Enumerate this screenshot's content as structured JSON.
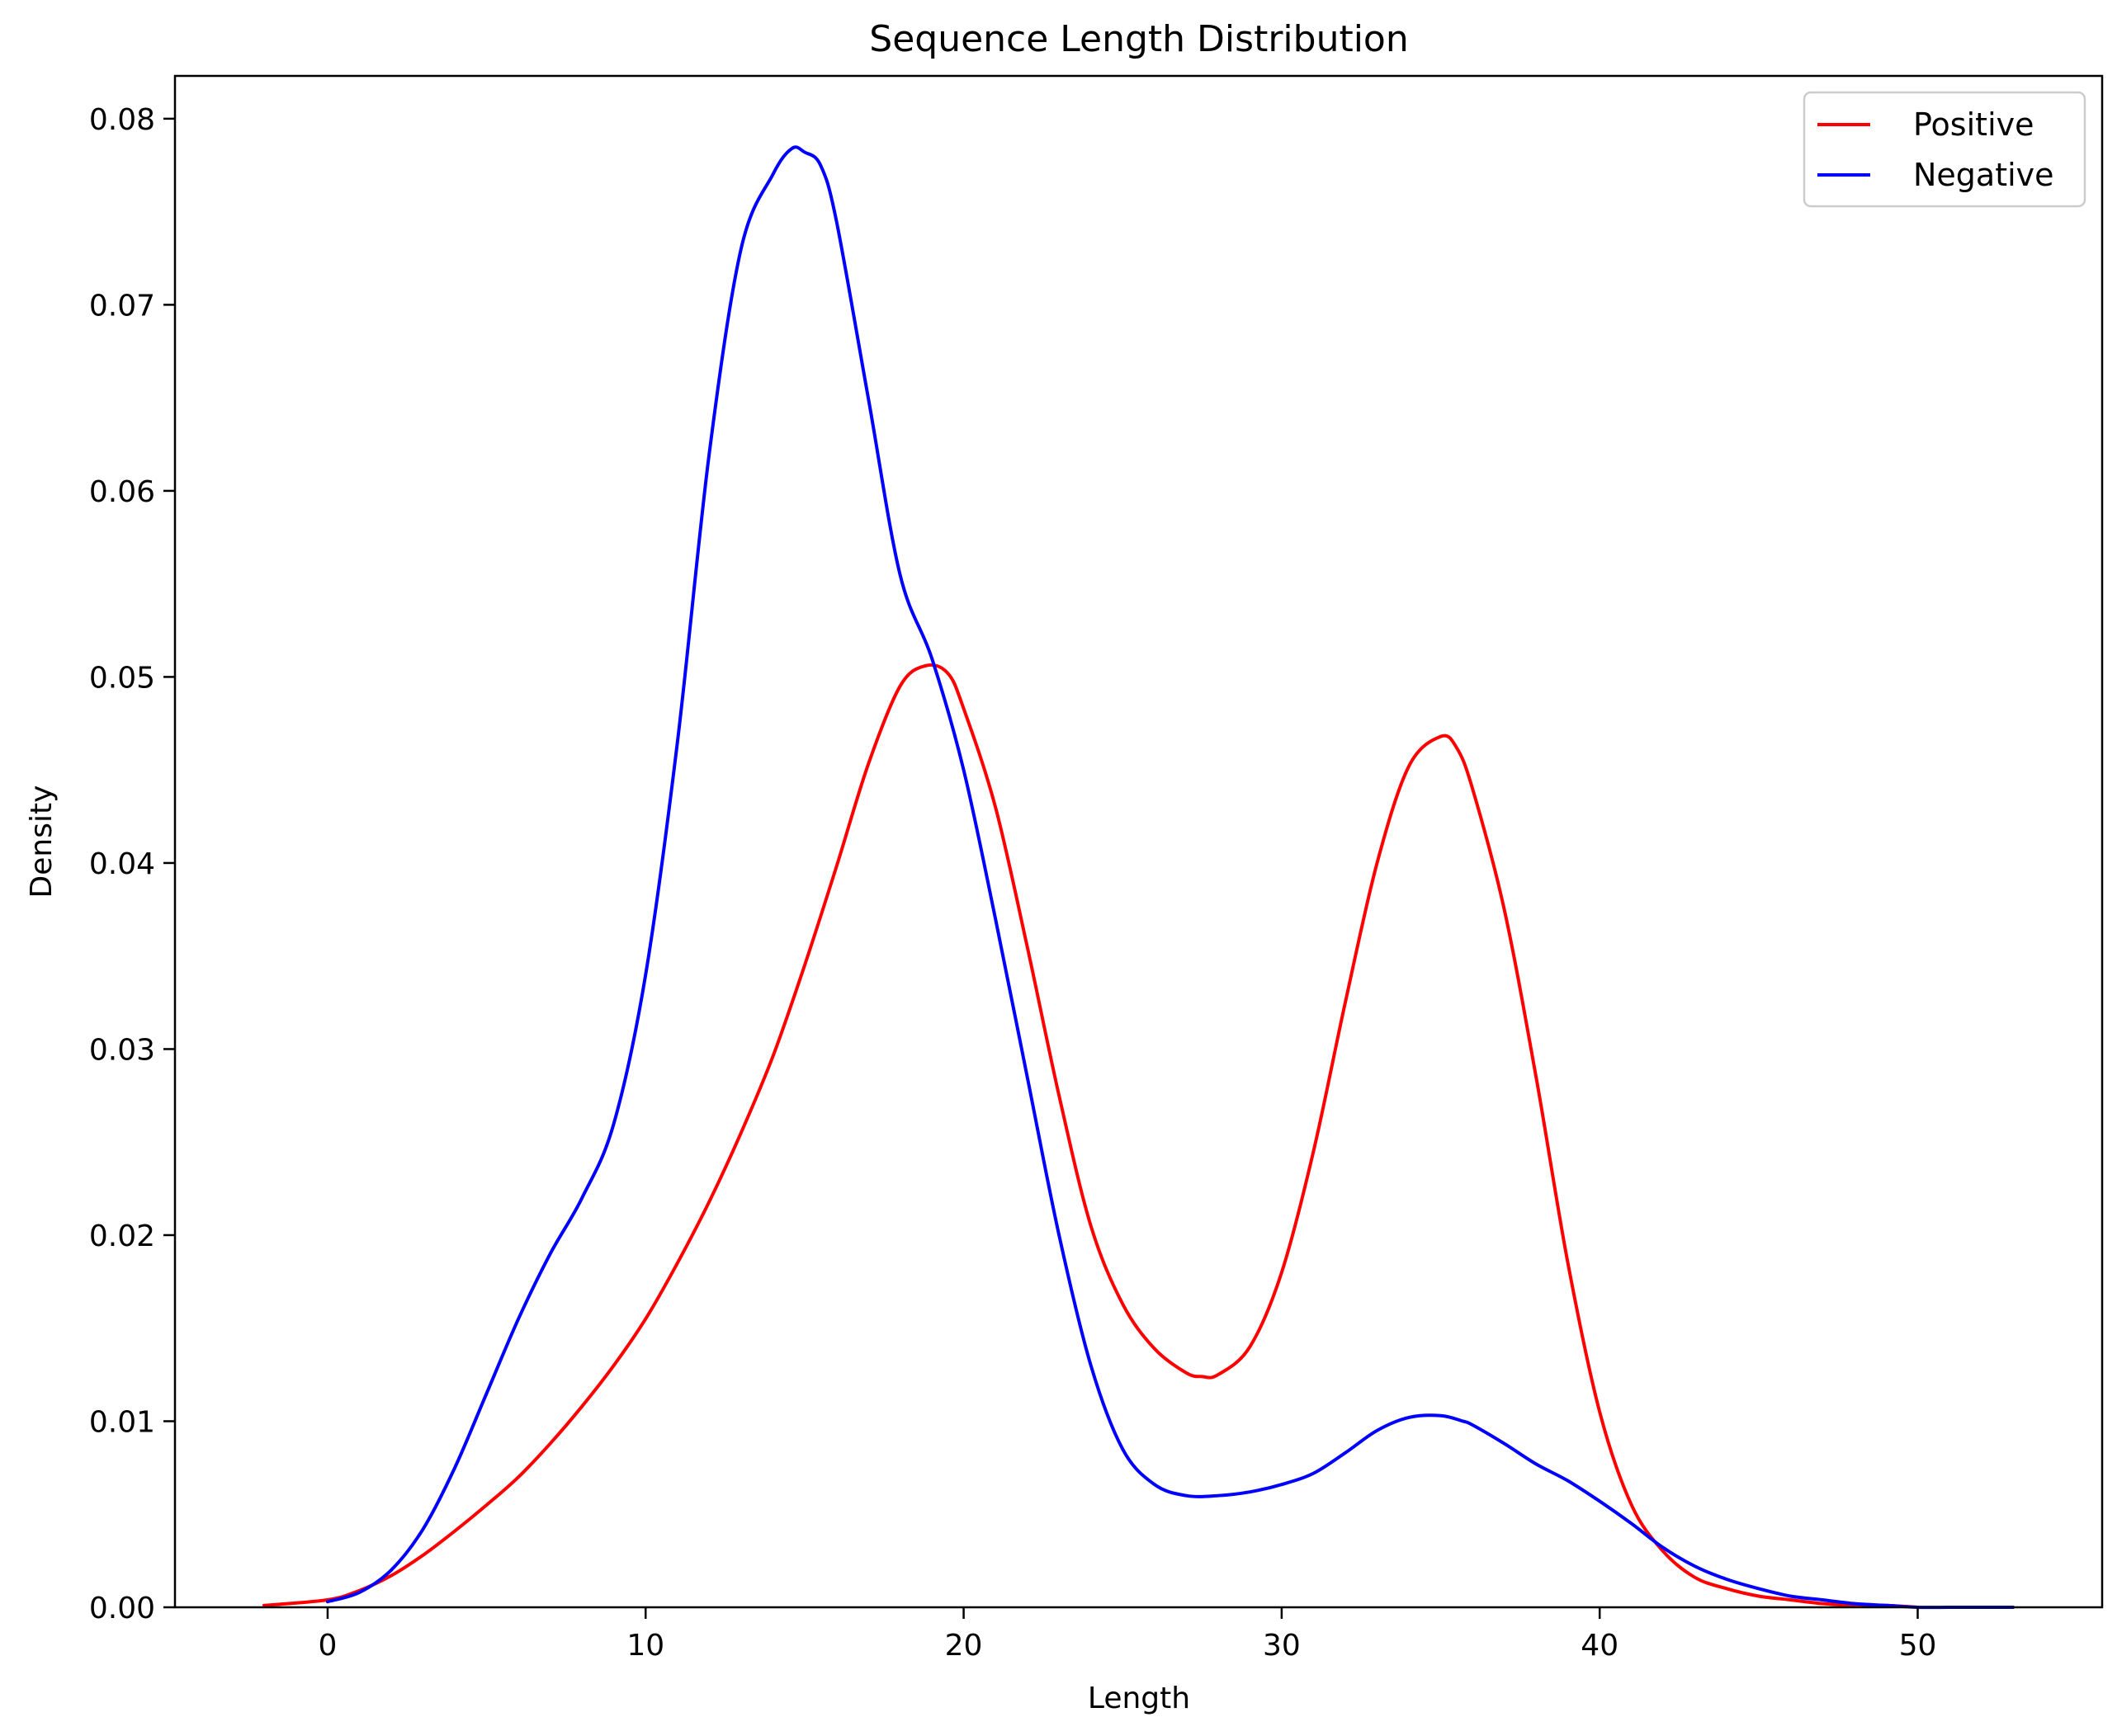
{
  "chart_data": {
    "type": "line",
    "title": "Sequence Length Distribution",
    "xlabel": "Length",
    "ylabel": "Density",
    "xlim": [
      -4.8,
      55.8
    ],
    "ylim": [
      0.0,
      0.0823
    ],
    "xticks": [
      0,
      10,
      20,
      30,
      40,
      50
    ],
    "xtick_labels": [
      "0",
      "10",
      "20",
      "30",
      "40",
      "50"
    ],
    "yticks": [
      0.0,
      0.01,
      0.02,
      0.03,
      0.04,
      0.05,
      0.06,
      0.07,
      0.08
    ],
    "ytick_labels": [
      "0.00",
      "0.01",
      "0.02",
      "0.03",
      "0.04",
      "0.05",
      "0.06",
      "0.07",
      "0.08"
    ],
    "grid": false,
    "legend_position": "top-right",
    "series": [
      {
        "name": "Positive",
        "color": "#ff0000",
        "x": [
          -2,
          0,
          1,
          2,
          3,
          4,
          5,
          6,
          7,
          8,
          9,
          10,
          11,
          12,
          13,
          14,
          15,
          16,
          17,
          18,
          18.8,
          19.5,
          20,
          21,
          22,
          23,
          24,
          25,
          26,
          27,
          27.5,
          28,
          29,
          30,
          31,
          32,
          33,
          34,
          35,
          35.5,
          36,
          37,
          38,
          39,
          40,
          41,
          42,
          43,
          44,
          45,
          46,
          47,
          48,
          49,
          50
        ],
        "y": [
          0.0001,
          0.0004,
          0.0009,
          0.0017,
          0.0028,
          0.0041,
          0.0055,
          0.007,
          0.0088,
          0.0108,
          0.013,
          0.0155,
          0.0185,
          0.0218,
          0.0255,
          0.0296,
          0.0345,
          0.0398,
          0.0453,
          0.0495,
          0.0506,
          0.0502,
          0.0483,
          0.043,
          0.0355,
          0.0275,
          0.0205,
          0.0163,
          0.0139,
          0.0126,
          0.0124,
          0.0125,
          0.014,
          0.018,
          0.0245,
          0.0325,
          0.04,
          0.0452,
          0.0468,
          0.0462,
          0.044,
          0.0375,
          0.0285,
          0.0185,
          0.0105,
          0.0055,
          0.003,
          0.0016,
          0.001,
          0.0006,
          0.0004,
          0.0002,
          0.0001,
          0.0001,
          0.0
        ]
      },
      {
        "name": "Negative",
        "color": "#0000ff",
        "x": [
          0,
          1,
          2,
          3,
          4,
          5,
          6,
          7,
          8,
          9,
          10,
          11,
          12,
          13,
          14,
          14.6,
          15,
          15.5,
          16,
          17,
          18,
          19,
          20,
          21,
          22,
          23,
          24,
          25,
          26,
          27,
          28,
          29,
          30,
          31,
          32,
          33,
          34,
          35,
          35.7,
          36,
          37,
          38,
          39,
          40,
          41,
          42,
          43,
          44,
          45,
          46,
          47,
          48,
          49,
          50,
          51,
          52,
          53
        ],
        "y": [
          0.0003,
          0.0008,
          0.002,
          0.0042,
          0.0075,
          0.0115,
          0.0155,
          0.019,
          0.022,
          0.026,
          0.034,
          0.0465,
          0.062,
          0.073,
          0.077,
          0.0784,
          0.0782,
          0.0775,
          0.0745,
          0.065,
          0.0555,
          0.051,
          0.045,
          0.037,
          0.0285,
          0.02,
          0.013,
          0.0085,
          0.0066,
          0.006,
          0.006,
          0.0062,
          0.0066,
          0.0072,
          0.0083,
          0.0095,
          0.0102,
          0.0103,
          0.01,
          0.0098,
          0.0088,
          0.0077,
          0.0068,
          0.0057,
          0.0045,
          0.0032,
          0.0022,
          0.0015,
          0.001,
          0.0006,
          0.0004,
          0.0002,
          0.0001,
          0.0,
          0.0,
          0.0,
          0.0
        ]
      }
    ]
  }
}
